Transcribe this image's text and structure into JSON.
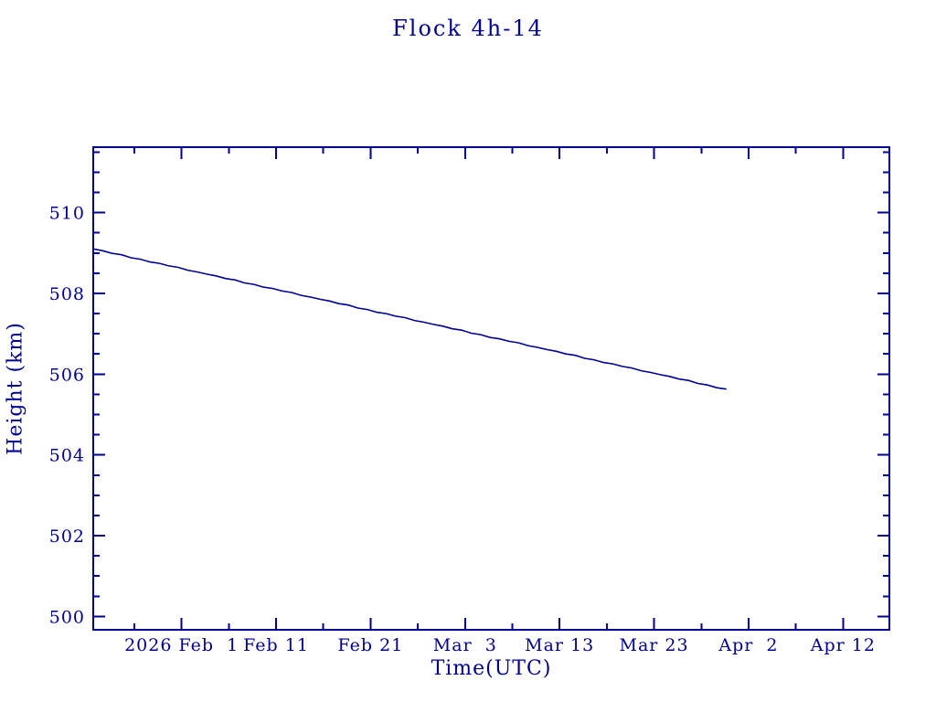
{
  "page": {
    "background_color": "#ffffff"
  },
  "chart_data": {
    "type": "line",
    "title": "Flock 4h-14",
    "xlabel": "Time(UTC)",
    "ylabel": "Height (km)",
    "grid": false,
    "legend": false,
    "line_color": "#000090",
    "axis_color": "#000090",
    "text_color": "#000090",
    "x_axis": {
      "epoch_label_date": "2026-02-01",
      "range_days_from_epoch": [
        -9.35,
        74.9
      ],
      "major_tick_labels": [
        {
          "label": "2026 Feb  1",
          "day": 0
        },
        {
          "label": "Feb 11",
          "day": 10
        },
        {
          "label": "Feb 21",
          "day": 20
        },
        {
          "label": "Mar  3",
          "day": 30
        },
        {
          "label": "Mar 13",
          "day": 40
        },
        {
          "label": "Mar 23",
          "day": 50
        },
        {
          "label": "Apr  2",
          "day": 60
        },
        {
          "label": "Apr 12",
          "day": 70
        }
      ],
      "minor_tick_days": [
        -5,
        5,
        15,
        25,
        35,
        45,
        55,
        65
      ]
    },
    "y_axis": {
      "unit": "km",
      "range_km": [
        499.67,
        511.62
      ],
      "major_ticks": [
        500,
        502,
        504,
        506,
        508,
        510
      ],
      "minor_tick_step_km": 0.5
    },
    "series": [
      {
        "name": "height_km",
        "start_date": "2026-01-23",
        "start_day_from_epoch": -9.35,
        "cadence_days": 1,
        "values_km": [
          509.1,
          509.056,
          508.99,
          508.956,
          508.882,
          508.845,
          508.777,
          508.743,
          508.681,
          508.643,
          508.573,
          508.531,
          508.477,
          508.434,
          508.368,
          508.334,
          508.26,
          508.222,
          508.154,
          508.12,
          508.058,
          508.021,
          507.951,
          507.909,
          507.855,
          507.811,
          507.745,
          507.711,
          507.637,
          507.6,
          507.532,
          507.498,
          507.436,
          507.398,
          507.328,
          507.286,
          507.232,
          507.189,
          507.123,
          507.089,
          507.015,
          506.977,
          506.909,
          506.875,
          506.813,
          506.776,
          506.706,
          506.664,
          506.61,
          506.566,
          506.5,
          506.466,
          506.392,
          506.355,
          506.287,
          506.253,
          506.191,
          506.153,
          506.083,
          506.041,
          505.987,
          505.944,
          505.878,
          505.844,
          505.77,
          505.732,
          505.664,
          505.63
        ]
      }
    ]
  }
}
